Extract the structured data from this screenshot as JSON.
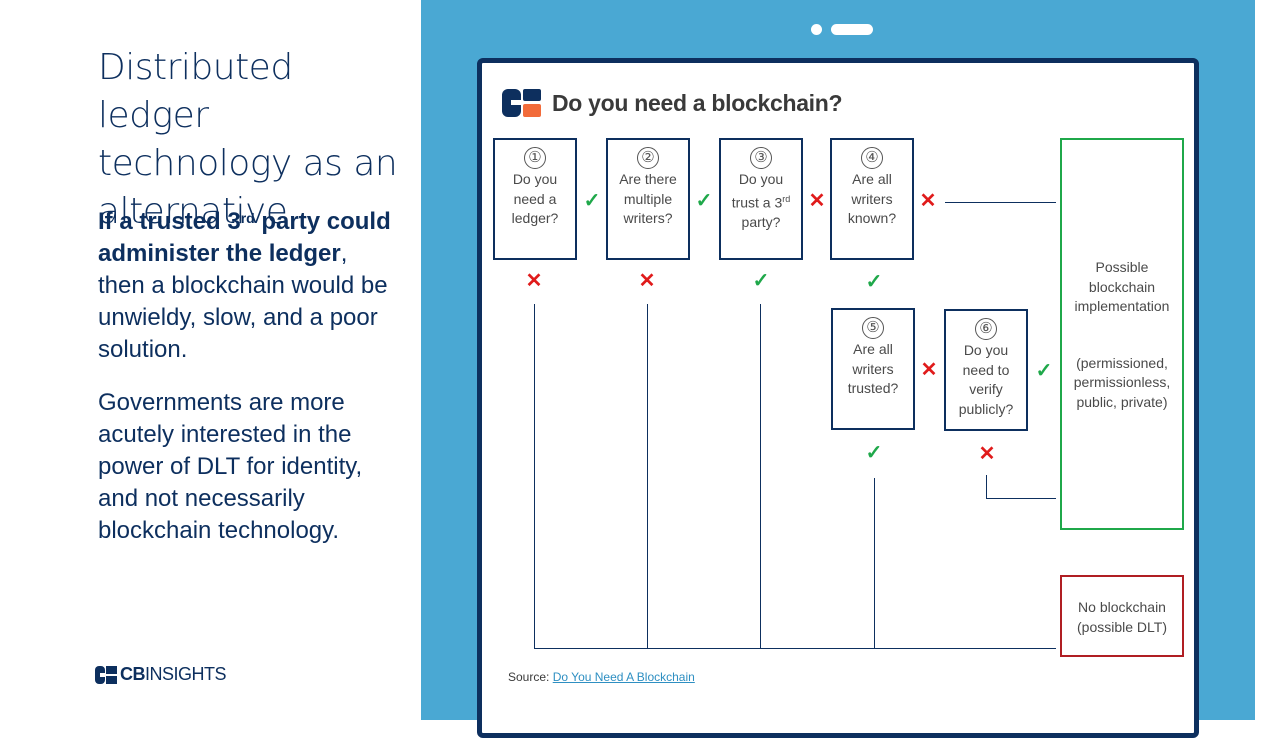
{
  "left": {
    "title": "Distributed ledger technology as an alternative",
    "para1_bold_a": "If a trusted 3",
    "para1_bold_sup": "rd",
    "para1_bold_b": " party could administer the ledger",
    "para1_rest": ", then a blockchain would be unwieldy, slow, and a poor solution.",
    "para2": "Governments are more acutely interested in the power of DLT for identity, and not necessarily blockchain technology.",
    "logo_cb": "CB",
    "logo_insights": "INSIGHTS"
  },
  "diagram": {
    "title": "Do you need a blockchain?",
    "questions": [
      {
        "num": "①",
        "text": "Do you need a ledger?"
      },
      {
        "num": "②",
        "text": "Are there multiple writers?"
      },
      {
        "num": "③",
        "text_a": "Do you trust a 3",
        "text_sup": "rd",
        "text_b": " party?"
      },
      {
        "num": "④",
        "text": "Are all writers known?"
      },
      {
        "num": "⑤",
        "text": "Are all writers trusted?"
      },
      {
        "num": "⑥",
        "text": "Do you need to verify publicly?"
      }
    ],
    "marks": {
      "yes": "✓",
      "no": "✕"
    },
    "result_yes_a": "Possible blockchain implementation",
    "result_yes_b": "(permissioned, permissionless, public, private)",
    "result_no": "No blockchain (possible DLT)",
    "source_label": "Source:",
    "source_link": "Do You Need A Blockchain"
  },
  "colors": {
    "navy": "#0d2f5e",
    "tablet_blue": "#4aa8d3",
    "yes_green": "#1fa84a",
    "no_red": "#e01b1b",
    "no_box_red": "#b01e23",
    "logo_orange": "#f26b3a",
    "link_blue": "#2e8fc2"
  }
}
